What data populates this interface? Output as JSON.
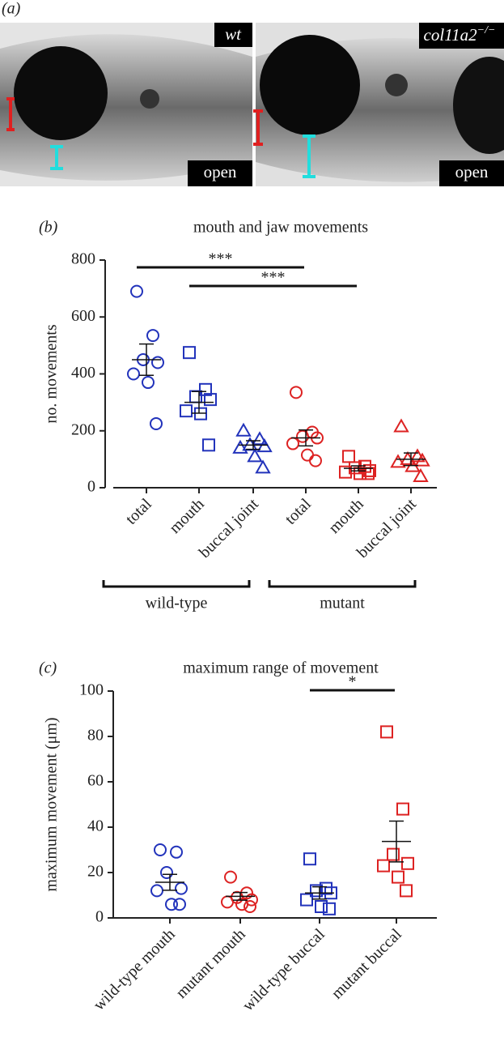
{
  "panel_a": {
    "label": "(a)",
    "left": {
      "genotype": "wt",
      "state": "open"
    },
    "right": {
      "genotype": "col11a2",
      "genotype_sup": "−/−",
      "state": "open"
    }
  },
  "chart_data": [
    {
      "type": "scatter",
      "panel": "(b)",
      "title": "mouth and jaw movements",
      "y_label": "no. movements",
      "categories": [
        "total",
        "mouth",
        "buccal joint",
        "total",
        "mouth",
        "buccal joint"
      ],
      "groups": [
        "wild-type",
        "mutant"
      ],
      "colors": [
        "#2233bb",
        "#2233bb",
        "#2233bb",
        "#dd2222",
        "#dd2222",
        "#dd2222"
      ],
      "markers": [
        "circle",
        "square",
        "triangle",
        "circle",
        "square",
        "triangle"
      ],
      "points": [
        [
          690,
          535,
          450,
          440,
          400,
          370,
          225
        ],
        [
          475,
          345,
          320,
          310,
          270,
          260,
          150
        ],
        [
          200,
          170,
          150,
          145,
          140,
          110,
          70
        ],
        [
          335,
          195,
          180,
          175,
          155,
          115,
          95
        ],
        [
          110,
          75,
          70,
          60,
          55,
          50,
          50
        ],
        [
          215,
          110,
          100,
          95,
          90,
          75,
          40
        ]
      ],
      "mean": [
        450,
        300,
        150,
        175,
        68,
        100
      ],
      "sem": [
        55,
        38,
        15,
        28,
        9,
        22
      ],
      "annotations": [
        "***",
        "***"
      ],
      "ylim": [
        0,
        800
      ],
      "yticks": [
        0,
        200,
        400,
        600,
        800
      ]
    },
    {
      "type": "scatter",
      "panel": "(c)",
      "title": "maximum range of movement",
      "y_label": "maximum movement (μm)",
      "categories": [
        "wild-type mouth",
        "mutant mouth",
        "wild-type buccal",
        "mutant buccal"
      ],
      "colors": [
        "#2233bb",
        "#dd2222",
        "#2233bb",
        "#dd2222"
      ],
      "markers": [
        "circle",
        "circle",
        "square",
        "square"
      ],
      "points": [
        [
          30,
          29,
          20,
          13,
          12,
          6,
          6
        ],
        [
          18,
          11,
          9,
          8,
          7,
          6,
          5
        ],
        [
          26,
          13,
          12,
          11,
          8,
          5,
          4
        ],
        [
          82,
          48,
          28,
          24,
          23,
          18,
          12
        ]
      ],
      "mean": [
        15.7,
        9.5,
        11,
        33.7
      ],
      "sem": [
        3.5,
        1.7,
        2.7,
        9
      ],
      "annotations": [
        "*"
      ],
      "ylim": [
        0,
        100
      ],
      "yticks": [
        0,
        20,
        40,
        60,
        80,
        100
      ]
    }
  ]
}
